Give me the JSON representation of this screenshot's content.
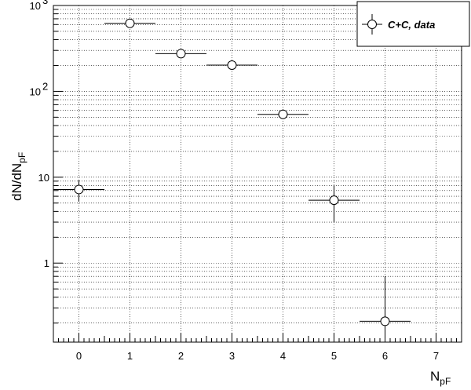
{
  "chart_data": {
    "type": "scatter",
    "title": "",
    "xlabel": "N",
    "xlabel_sub": "pF",
    "ylabel": "dN/dN",
    "ylabel_sub": "pF",
    "xlim": [
      -0.5,
      7.5
    ],
    "ylim": [
      0.12,
      1000
    ],
    "yscale": "log",
    "grid": true,
    "x_ticks": [
      "0",
      "1",
      "2",
      "3",
      "4",
      "5",
      "6",
      "7"
    ],
    "y_ticks": [
      {
        "base": "10",
        "exp": "3",
        "value": 1000
      },
      {
        "base": "10",
        "exp": "2",
        "value": 100
      },
      {
        "base": "10",
        "exp": "",
        "value": 10
      },
      {
        "base": "1",
        "exp": "",
        "value": 1
      }
    ],
    "legend_position": "top-right",
    "series": [
      {
        "name": "C+C, data",
        "points": [
          {
            "x": 0,
            "y": 7.2,
            "xerr": 0.5,
            "ylo": 5.2,
            "yhi": 9.3
          },
          {
            "x": 1,
            "y": 620,
            "xerr": 0.5,
            "ylo": 560,
            "yhi": 680
          },
          {
            "x": 2,
            "y": 275,
            "xerr": 0.5,
            "ylo": 245,
            "yhi": 305
          },
          {
            "x": 3,
            "y": 202,
            "xerr": 0.5,
            "ylo": 180,
            "yhi": 225
          },
          {
            "x": 4,
            "y": 54,
            "xerr": 0.5,
            "ylo": 48,
            "yhi": 61
          },
          {
            "x": 5,
            "y": 5.4,
            "xerr": 0.5,
            "ylo": 3.0,
            "yhi": 8.0
          },
          {
            "x": 6,
            "y": 0.21,
            "xerr": 0.5,
            "ylo": 0.12,
            "yhi": 0.7
          }
        ]
      }
    ]
  }
}
